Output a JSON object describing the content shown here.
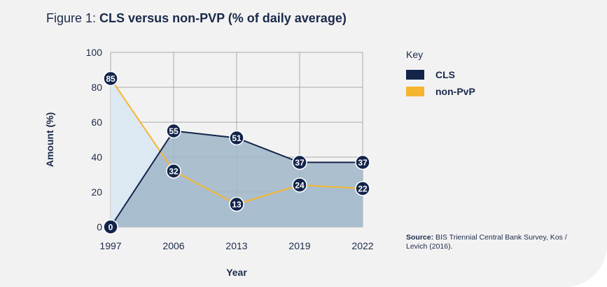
{
  "figure": {
    "prefix": "Figure 1: ",
    "title": "CLS versus non-PVP (% of daily average)"
  },
  "legend": {
    "title": "Key",
    "items": [
      {
        "label": "CLS",
        "color": "#13244b"
      },
      {
        "label": "non-PvP",
        "color": "#f5b52e"
      }
    ]
  },
  "source": {
    "label": "Source:",
    "text": "BIS Triennial Central Bank Survey, Kos / Levich (2016)."
  },
  "chart_data": {
    "type": "area",
    "categories": [
      "1997",
      "2006",
      "2013",
      "2019",
      "2022"
    ],
    "series": [
      {
        "name": "CLS",
        "values": [
          0,
          55,
          51,
          37,
          37
        ],
        "color": "#13244b",
        "fill": "#9fb6c8"
      },
      {
        "name": "non-PvP",
        "values": [
          85,
          32,
          13,
          24,
          22
        ],
        "color": "#f5b52e",
        "fill": "#dce9f3"
      }
    ],
    "data_labels": {
      "CLS": [
        "0",
        "55",
        "51",
        "37",
        "37"
      ],
      "non-PvP": [
        "85",
        "32",
        "13",
        "24",
        "22"
      ]
    },
    "xlabel": "Year",
    "ylabel": "Amount (%)",
    "ylim": [
      0,
      100
    ],
    "yticks": [
      "0",
      "20",
      "40",
      "60",
      "80",
      "100"
    ],
    "grid": true,
    "legend_position": "right"
  }
}
